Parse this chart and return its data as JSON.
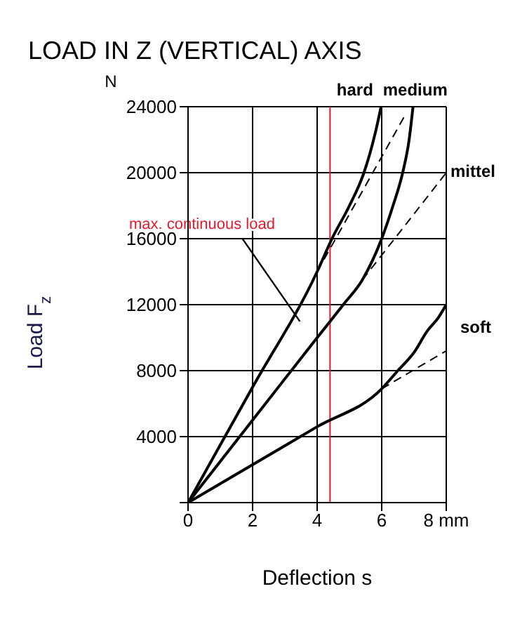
{
  "chart_data": {
    "type": "line",
    "title": "LOAD IN Z (VERTICAL) AXIS",
    "xlabel": "Deflection s",
    "ylabel": "Load F$_{z}$",
    "xlim": [
      0,
      8
    ],
    "xticks": [
      0,
      2,
      4,
      6,
      {
        "value": 8,
        "label": "8 mm"
      }
    ],
    "ylim": [
      0,
      24000
    ],
    "yticks": [
      {
        "value": 0,
        "label": null
      },
      4000,
      8000,
      12000,
      16000,
      20000,
      24000
    ],
    "grid": true,
    "marker": "none",
    "series": [
      {
        "name": "hard",
        "color": "#000000",
        "x": [
          0,
          2,
          4,
          4.46,
          5,
          5.45,
          5.8,
          5.98
        ],
        "values": [
          0,
          7000,
          14000,
          16000,
          18000,
          20000,
          22400,
          24000
        ]
      },
      {
        "name": "medium",
        "color": "#000000",
        "x": [
          0,
          2,
          4,
          4.81,
          5.4,
          6,
          6.35,
          6.65,
          6.85,
          6.97
        ],
        "values": [
          0,
          5000,
          10000,
          12000,
          13500,
          16000,
          18000,
          20000,
          22000,
          24000
        ]
      },
      {
        "name": "soft",
        "color": "#000000",
        "x": [
          0,
          2,
          4,
          6,
          6.5,
          7,
          7.41,
          7.75,
          8
        ],
        "values": [
          0,
          2300,
          4600,
          6900,
          8000,
          9100,
          10400,
          11200,
          12000
        ]
      },
      {
        "color": "#000000",
        "line_style": "dashed",
        "x": [
          4,
          6.7
        ],
        "values": [
          14000,
          23400
        ]
      },
      {
        "color": "#000000",
        "line_style": "dashed",
        "x": [
          5.4,
          8
        ],
        "values": [
          13500,
          20000
        ]
      },
      {
        "color": "#000000",
        "line_style": "dashed",
        "x": [
          6,
          8
        ],
        "values": [
          6900,
          9200
        ]
      }
    ],
    "ref_lines": [
      {
        "axis": "x",
        "value": 4.4,
        "label": "max. continuous load",
        "color": "#e8182c"
      }
    ],
    "annotations": [
      "N",
      "mittel"
    ]
  }
}
